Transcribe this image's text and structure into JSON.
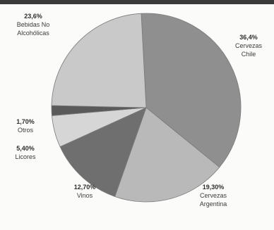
{
  "chart_data": {
    "type": "pie",
    "title": "",
    "slices": [
      {
        "label_lines": [
          "Cervezas",
          "Chile"
        ],
        "pct_text": "36,4%",
        "value": 36.4,
        "color": "#8f8f8f"
      },
      {
        "label_lines": [
          "Cervezas",
          "Argentina"
        ],
        "pct_text": "19,30%",
        "value": 19.3,
        "color": "#b9b9b9"
      },
      {
        "label_lines": [
          "Vinos"
        ],
        "pct_text": "12,70%",
        "value": 12.7,
        "color": "#6f6f6f"
      },
      {
        "label_lines": [
          "Licores"
        ],
        "pct_text": "5,40%",
        "value": 5.4,
        "color": "#d6d6d6"
      },
      {
        "label_lines": [
          "Otros"
        ],
        "pct_text": "1,70%",
        "value": 1.7,
        "color": "#5a5a5a"
      },
      {
        "label_lines": [
          "Bebidas No",
          "Alcohólicas"
        ],
        "pct_text": "23,6%",
        "value": 23.6,
        "color": "#c9c9c9"
      }
    ]
  }
}
